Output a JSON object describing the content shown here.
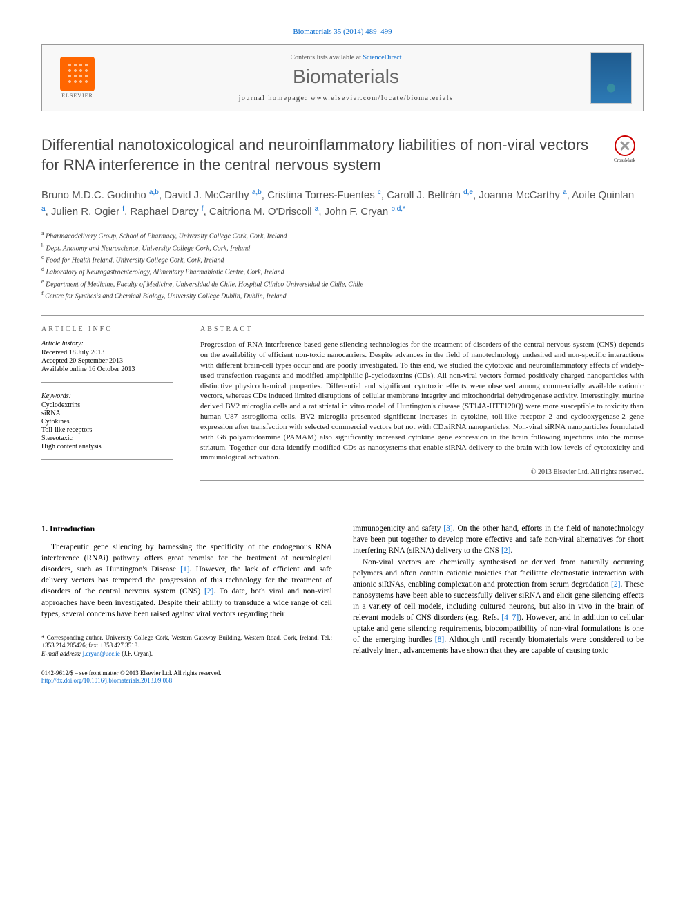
{
  "citation": "Biomaterials 35 (2014) 489–499",
  "header": {
    "contents_prefix": "Contents lists available at ",
    "contents_link": "ScienceDirect",
    "journal_name": "Biomaterials",
    "homepage_prefix": "journal homepage: ",
    "homepage_url": "www.elsevier.com/locate/biomaterials",
    "publisher": "ELSEVIER",
    "crossmark": "CrossMark"
  },
  "title": "Differential nanotoxicological and neuroinflammatory liabilities of non-viral vectors for RNA interference in the central nervous system",
  "authors_html": "Bruno M.D.C. Godinho <sup>a,b</sup>, David J. McCarthy <sup>a,b</sup>, Cristina Torres-Fuentes <sup>c</sup>, Caroll J. Beltrán <sup>d,e</sup>, Joanna McCarthy <sup>a</sup>, Aoife Quinlan <sup>a</sup>, Julien R. Ogier <sup>f</sup>, Raphael Darcy <sup>f</sup>, Caitriona M. O'Driscoll <sup>a</sup>, John F. Cryan <sup>b,d,*</sup>",
  "affiliations": [
    {
      "sup": "a",
      "text": "Pharmacodelivery Group, School of Pharmacy, University College Cork, Cork, Ireland"
    },
    {
      "sup": "b",
      "text": "Dept. Anatomy and Neuroscience, University College Cork, Cork, Ireland"
    },
    {
      "sup": "c",
      "text": "Food for Health Ireland, University College Cork, Cork, Ireland"
    },
    {
      "sup": "d",
      "text": "Laboratory of Neurogastroenterology, Alimentary Pharmabiotic Centre, Cork, Ireland"
    },
    {
      "sup": "e",
      "text": "Department of Medicine, Faculty of Medicine, Universidad de Chile, Hospital Clínico Universidad de Chile, Chile"
    },
    {
      "sup": "f",
      "text": "Centre for Synthesis and Chemical Biology, University College Dublin, Dublin, Ireland"
    }
  ],
  "info": {
    "heading": "ARTICLE INFO",
    "history_label": "Article history:",
    "received": "Received 18 July 2013",
    "accepted": "Accepted 20 September 2013",
    "online": "Available online 16 October 2013",
    "keywords_label": "Keywords:",
    "keywords": [
      "Cyclodextrins",
      "siRNA",
      "Cytokines",
      "Toll-like receptors",
      "Stereotaxic",
      "High content analysis"
    ]
  },
  "abstract": {
    "heading": "ABSTRACT",
    "text": "Progression of RNA interference-based gene silencing technologies for the treatment of disorders of the central nervous system (CNS) depends on the availability of efficient non-toxic nanocarriers. Despite advances in the field of nanotechnology undesired and non-specific interactions with different brain-cell types occur and are poorly investigated. To this end, we studied the cytotoxic and neuroinflammatory effects of widely-used transfection reagents and modified amphiphilic β-cyclodextrins (CDs). All non-viral vectors formed positively charged nanoparticles with distinctive physicochemical properties. Differential and significant cytotoxic effects were observed among commercially available cationic vectors, whereas CDs induced limited disruptions of cellular membrane integrity and mitochondrial dehydrogenase activity. Interestingly, murine derived BV2 microglia cells and a rat striatal in vitro model of Huntington's disease (ST14A-HTT120Q) were more susceptible to toxicity than human U87 astroglioma cells. BV2 microglia presented significant increases in cytokine, toll-like receptor 2 and cyclooxygenase-2 gene expression after transfection with selected commercial vectors but not with CD.siRNA nanoparticles. Non-viral siRNA nanoparticles formulated with G6 polyamidoamine (PAMAM) also significantly increased cytokine gene expression in the brain following injections into the mouse striatum. Together our data identify modified CDs as nanosystems that enable siRNA delivery to the brain with low levels of cytotoxicity and immunological activation.",
    "copyright": "© 2013 Elsevier Ltd. All rights reserved."
  },
  "body": {
    "section_num": "1.",
    "section_title": "Introduction",
    "col1_p1": "Therapeutic gene silencing by harnessing the specificity of the endogenous RNA interference (RNAi) pathway offers great promise for the treatment of neurological disorders, such as Huntington's Disease [1]. However, the lack of efficient and safe delivery vectors has tempered the progression of this technology for the treatment of disorders of the central nervous system (CNS) [2]. To date, both viral and non-viral approaches have been investigated. Despite their ability to transduce a wide range of cell types, several concerns have been raised against viral vectors regarding their",
    "col2_p1": "immunogenicity and safety [3]. On the other hand, efforts in the field of nanotechnology have been put together to develop more effective and safe non-viral alternatives for short interfering RNA (siRNA) delivery to the CNS [2].",
    "col2_p2": "Non-viral vectors are chemically synthesised or derived from naturally occurring polymers and often contain cationic moieties that facilitate electrostatic interaction with anionic siRNAs, enabling complexation and protection from serum degradation [2]. These nanosystems have been able to successfully deliver siRNA and elicit gene silencing effects in a variety of cell models, including cultured neurons, but also in vivo in the brain of relevant models of CNS disorders (e.g. Refs. [4–7]). However, and in addition to cellular uptake and gene silencing requirements, biocompatibility of non-viral formulations is one of the emerging hurdles [8]. Although until recently biomaterials were considered to be relatively inert, advancements have shown that they are capable of causing toxic"
  },
  "footnote": {
    "corr": "* Corresponding author. University College Cork, Western Gateway Building, Western Road, Cork, Ireland. Tel.: +353 214 205426; fax: +353 427 3518.",
    "email_label": "E-mail address:",
    "email": "j.cryan@ucc.ie",
    "email_suffix": "(J.F. Cryan)."
  },
  "footer": {
    "line1": "0142-9612/$ – see front matter © 2013 Elsevier Ltd. All rights reserved.",
    "doi": "http://dx.doi.org/10.1016/j.biomaterials.2013.09.068"
  },
  "colors": {
    "link": "#0066cc",
    "elsevier_orange": "#ff6600",
    "journal_gray": "#666666",
    "cover_blue": "#1e5a8e"
  }
}
